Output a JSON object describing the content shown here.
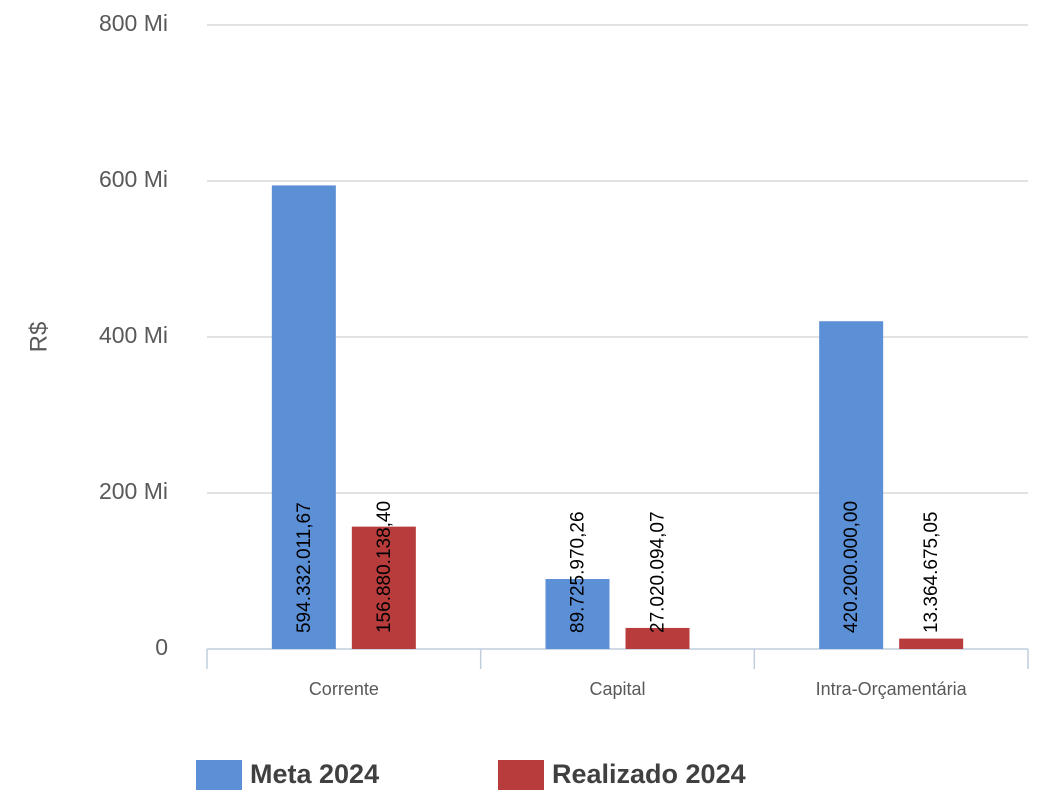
{
  "chart_data": {
    "type": "bar",
    "y_label": "R$",
    "categories": [
      "Corrente",
      "Capital",
      "Intra-Orçamentária"
    ],
    "series": [
      {
        "name": "Meta 2024",
        "color": "#5b8fd6",
        "values": [
          594332011.67,
          89725970.26,
          420200000.0
        ],
        "value_labels": [
          "594.332.011,67",
          "89.725.970,26",
          "420.200.000,00"
        ]
      },
      {
        "name": "Realizado 2024",
        "color": "#b83c3c",
        "values": [
          156880138.4,
          27020094.07,
          13364675.05
        ],
        "value_labels": [
          "156.880.138,40",
          "27.020.094,07",
          "13.364.675,05"
        ]
      }
    ],
    "ylim": [
      0,
      800000000
    ],
    "yticks": [
      0,
      {
        "value": 200000000,
        "label": "200 Mi"
      },
      {
        "value": 400000000,
        "label": "400 Mi"
      },
      {
        "value": 600000000,
        "label": "600 Mi"
      },
      {
        "value": 800000000,
        "label": "800 Mi"
      }
    ],
    "grid": true,
    "legend": "bottom"
  }
}
